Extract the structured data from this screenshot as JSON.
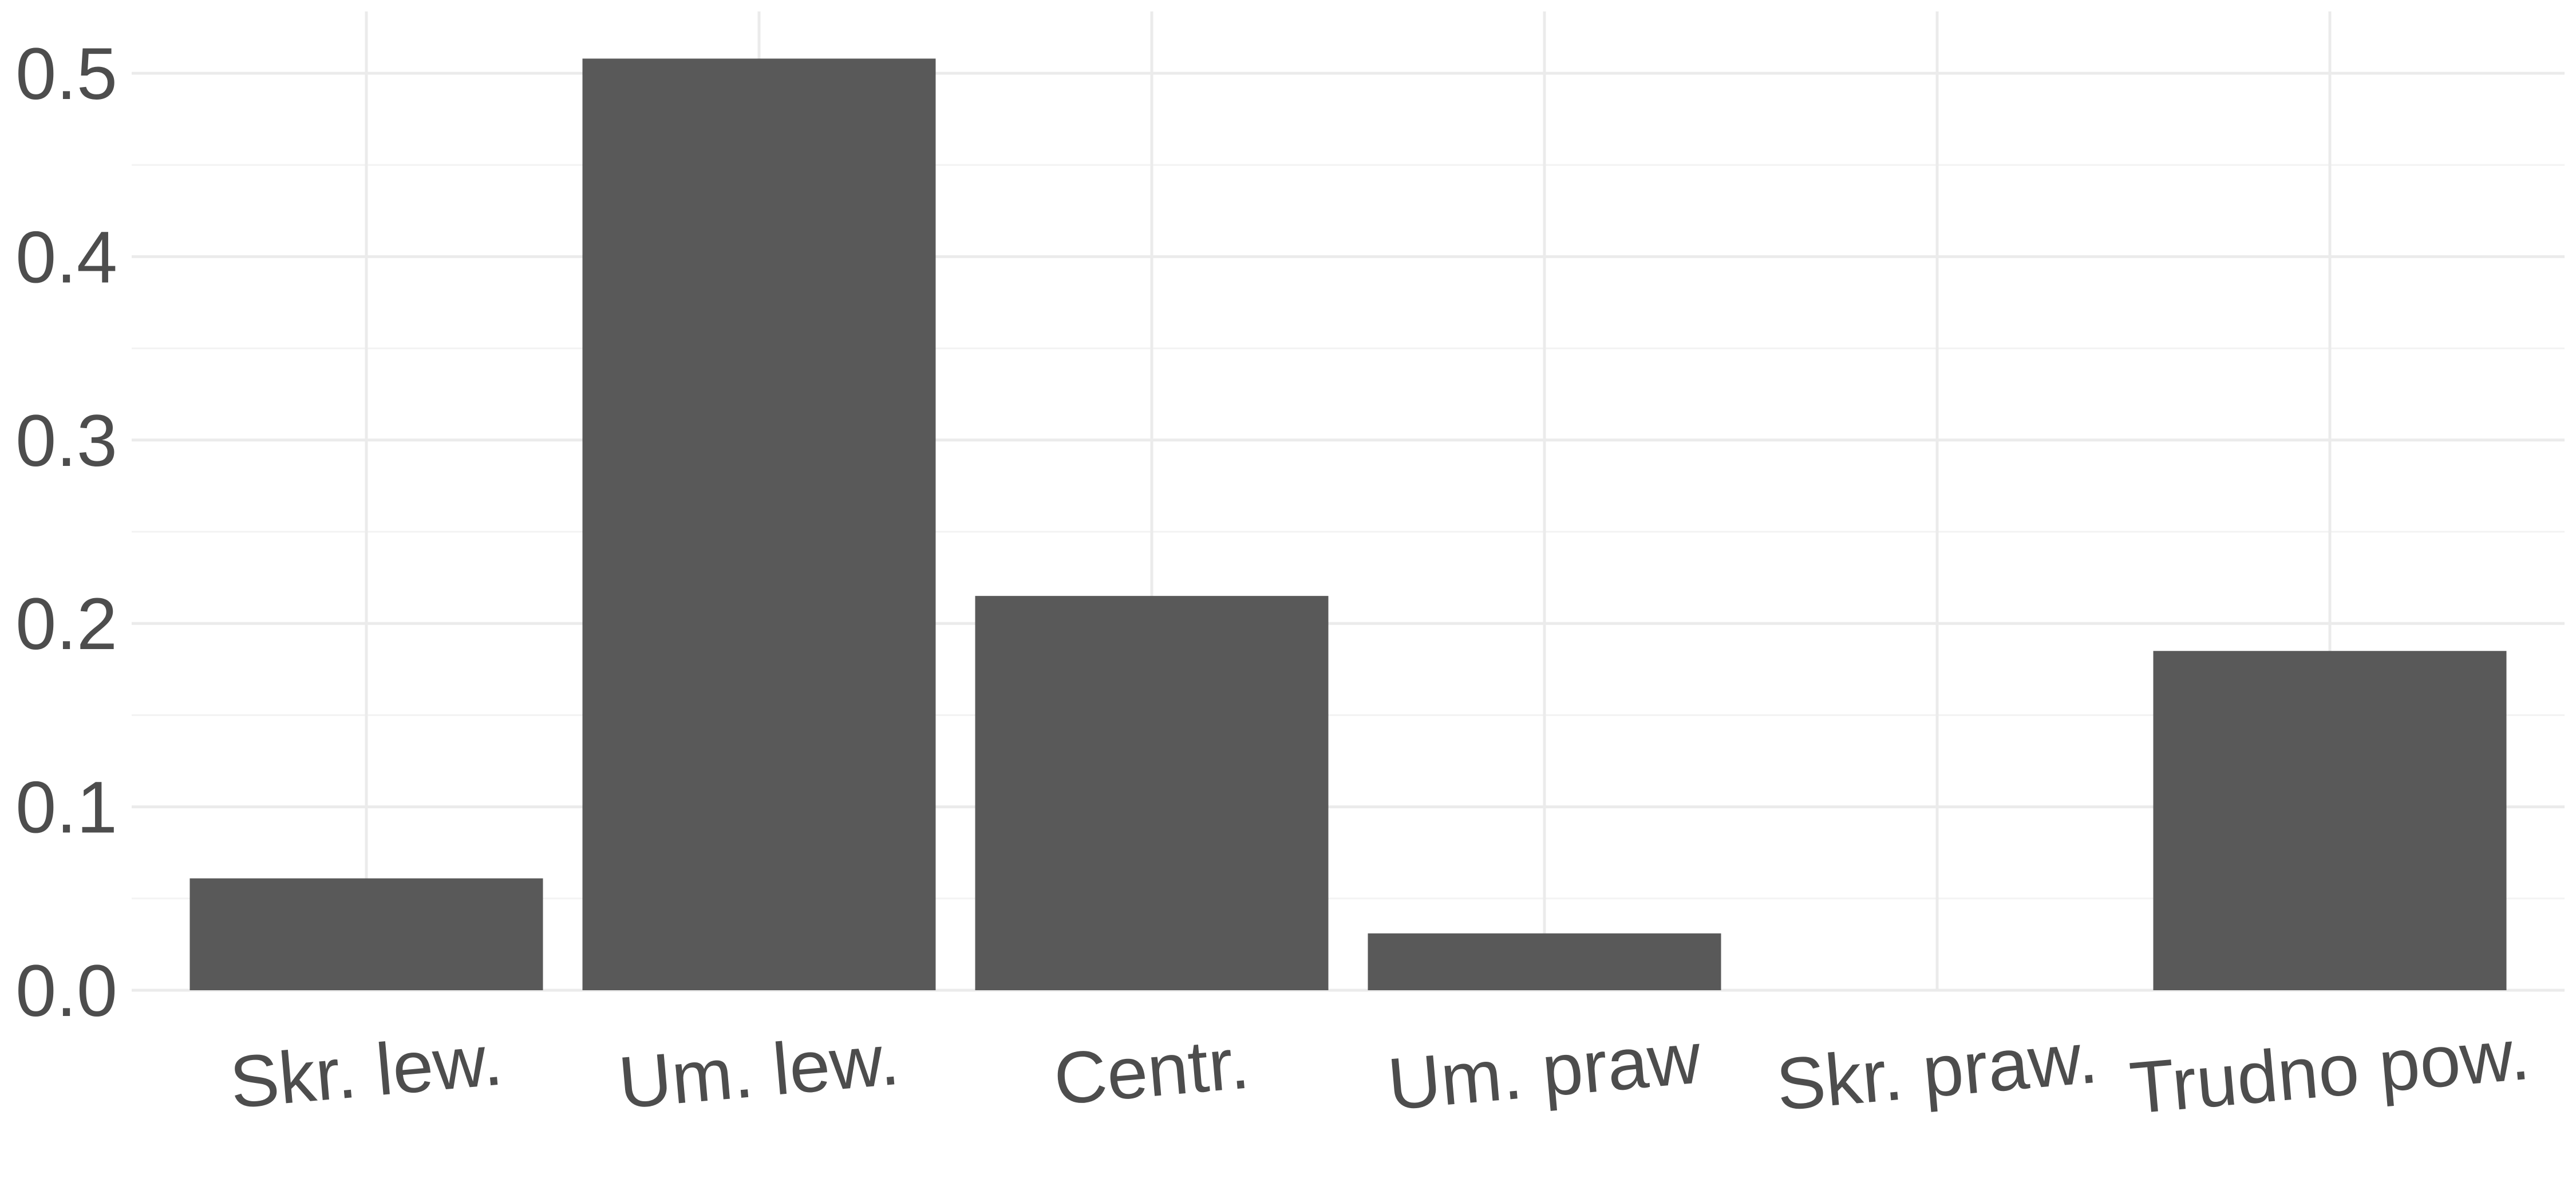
{
  "chart_data": {
    "type": "bar",
    "categories": [
      "Skr. lew.",
      "Um. lew.",
      "Centr.",
      "Um. praw",
      "Skr. praw.",
      "Trudno pow."
    ],
    "values": [
      0.061,
      0.508,
      0.215,
      0.031,
      0.0,
      0.185
    ],
    "y_ticks": [
      "0.0",
      "0.1",
      "0.2",
      "0.3",
      "0.4",
      "0.5"
    ],
    "y_tick_values": [
      0,
      0.1,
      0.2,
      0.3,
      0.4,
      0.5
    ],
    "ylim": [
      0,
      0.5
    ],
    "grid": true,
    "legend": "none",
    "bar_color": "#595959",
    "grid_color": "#ebebeb",
    "text_color": "#4d4d4d"
  }
}
